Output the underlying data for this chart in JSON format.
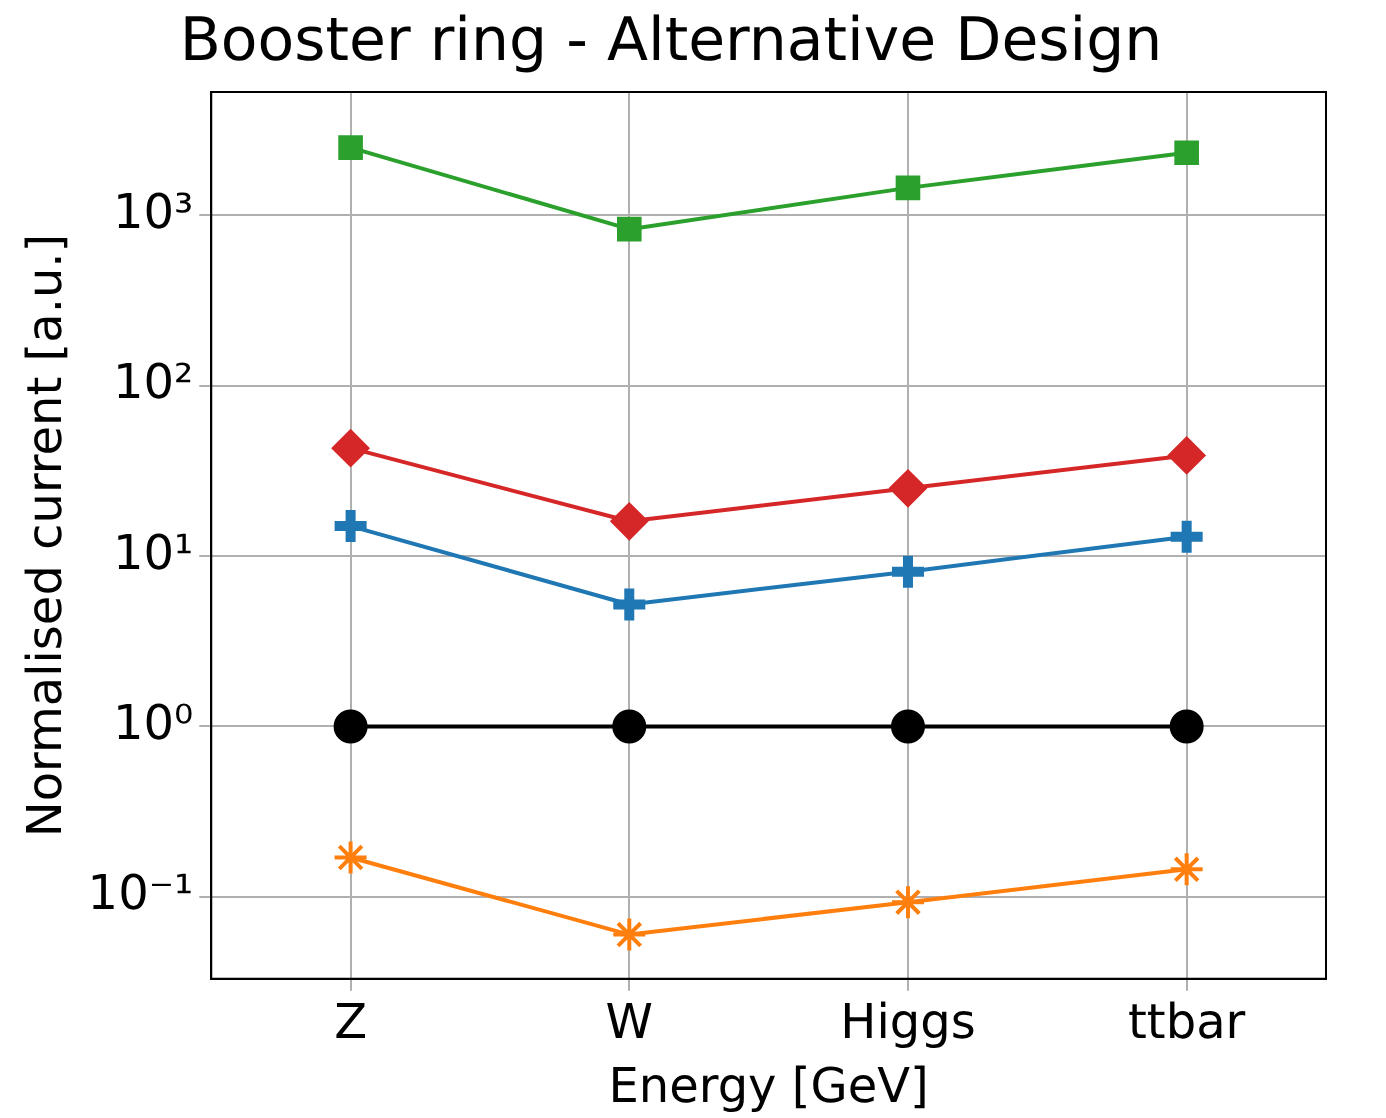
{
  "chart_data": {
    "type": "line",
    "title": "Booster ring - Alternative Design",
    "xlabel": "Energy [GeV]",
    "ylabel": "Normalised current [a.u.]",
    "categories": [
      "Z",
      "W",
      "Higgs",
      "ttbar"
    ],
    "ylim": [
      0.033,
      5300
    ],
    "log": "y",
    "yticks": [
      {
        "value": 0.1,
        "label": "10⁻¹"
      },
      {
        "value": 1,
        "label": "10⁰"
      },
      {
        "value": 10,
        "label": "10¹"
      },
      {
        "value": 100,
        "label": "10²"
      },
      {
        "value": 1000,
        "label": "10³"
      }
    ],
    "grid": true,
    "legend": false,
    "series": [
      {
        "color": "#2ca02c",
        "marker": "square",
        "values": [
          2500,
          830,
          1450,
          2330
        ]
      },
      {
        "color": "#d62728",
        "marker": "diamond",
        "values": [
          43,
          16,
          25,
          39
        ]
      },
      {
        "color": "#1f77b4",
        "marker": "cross",
        "values": [
          15,
          5.2,
          8.1,
          13
        ]
      },
      {
        "color": "#000000",
        "marker": "circle",
        "values": [
          1,
          1,
          1,
          1
        ]
      },
      {
        "color": "#ff7f0e",
        "marker": "cross",
        "values": [
          0.17,
          0.06,
          0.093,
          0.145
        ]
      }
    ]
  }
}
